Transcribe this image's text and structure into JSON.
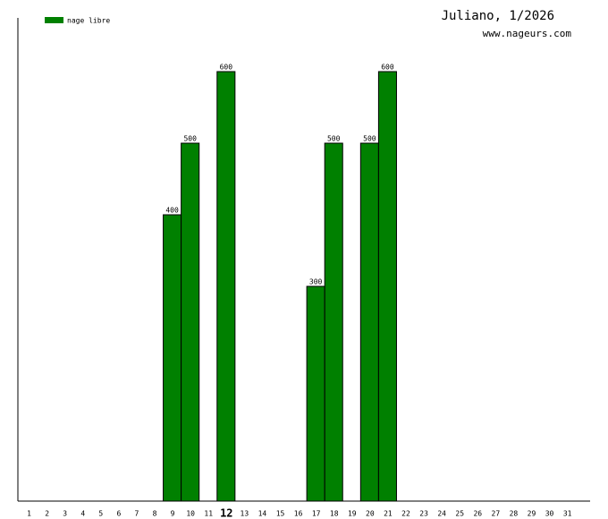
{
  "chart_data": {
    "type": "bar",
    "title": "Juliano, 1/2026",
    "subtitle": "www.nageurs.com",
    "categories": [
      "1",
      "2",
      "3",
      "4",
      "5",
      "6",
      "7",
      "8",
      "9",
      "10",
      "11",
      "12",
      "13",
      "14",
      "15",
      "16",
      "17",
      "18",
      "19",
      "20",
      "21",
      "22",
      "23",
      "24",
      "25",
      "26",
      "27",
      "28",
      "29",
      "30",
      "31"
    ],
    "series": [
      {
        "name": "nage libre",
        "color": "#008000",
        "values": [
          null,
          null,
          null,
          null,
          null,
          null,
          null,
          null,
          400,
          500,
          null,
          600,
          null,
          null,
          null,
          null,
          300,
          500,
          null,
          500,
          600,
          null,
          null,
          null,
          null,
          null,
          null,
          null,
          null,
          null,
          null
        ]
      }
    ],
    "highlighted_category": "12",
    "ylim": [
      0,
      675
    ],
    "legend": "top-left"
  }
}
